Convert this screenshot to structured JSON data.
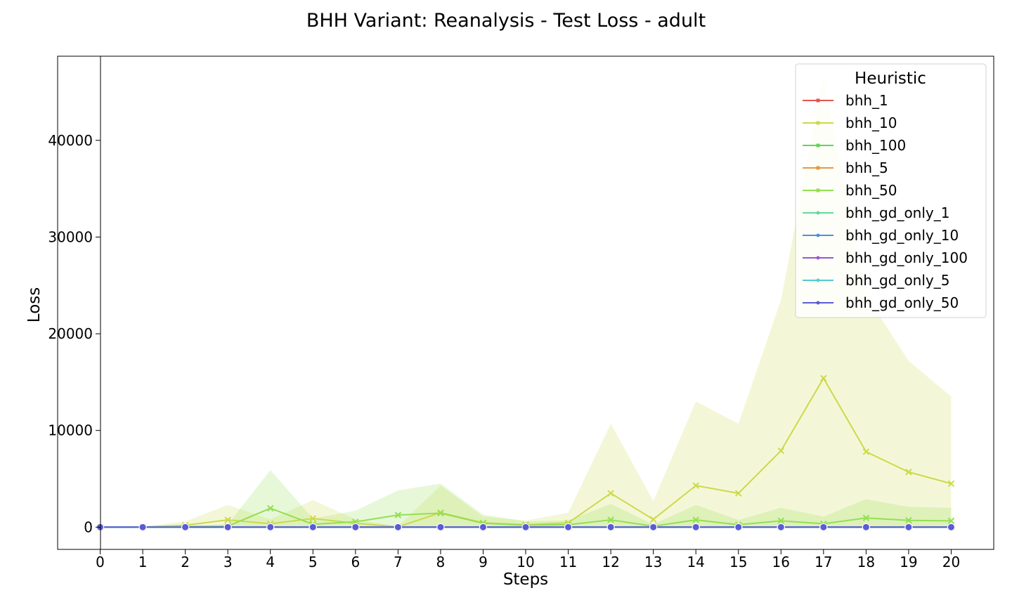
{
  "chart_data": {
    "type": "line",
    "title": "BHH Variant: Reanalysis - Test Loss - adult",
    "xlabel": "Steps",
    "ylabel": "Loss",
    "x": [
      0,
      1,
      2,
      3,
      4,
      5,
      6,
      7,
      8,
      9,
      10,
      11,
      12,
      13,
      14,
      15,
      16,
      17,
      18,
      19,
      20
    ],
    "xlim": [
      -1,
      21
    ],
    "ylim": [
      -2300,
      48700
    ],
    "yticks": [
      0,
      10000,
      20000,
      30000,
      40000
    ],
    "grid": false,
    "legend": {
      "title": "Heuristic",
      "placement": "top-right"
    },
    "series": [
      {
        "name": "bhh_1",
        "color": "#e0584f",
        "marker": "x",
        "values": [
          0,
          0,
          0,
          0,
          0,
          0,
          0,
          0,
          0,
          0,
          0,
          0,
          0,
          0,
          0,
          0,
          0,
          0,
          0,
          0,
          0
        ]
      },
      {
        "name": "bhh_10",
        "color": "#ccd94a",
        "marker": "x",
        "values": [
          0,
          20,
          200,
          750,
          350,
          900,
          400,
          30,
          1500,
          450,
          250,
          450,
          3500,
          800,
          4300,
          3500,
          7900,
          15400,
          7800,
          5700,
          4500
        ],
        "band_low": [
          0,
          0,
          0,
          0,
          0,
          0,
          0,
          0,
          0,
          0,
          0,
          0,
          0,
          0,
          0,
          0,
          0,
          0,
          0,
          0,
          0
        ],
        "band_high": [
          0,
          50,
          600,
          2300,
          800,
          2800,
          800,
          60,
          4300,
          1100,
          700,
          1500,
          10700,
          2700,
          13000,
          10700,
          23500,
          46500,
          24000,
          17200,
          13500
        ]
      },
      {
        "name": "bhh_100",
        "color": "#5ed65a",
        "marker": "x",
        "values": [
          0,
          0,
          0,
          0,
          0,
          0,
          0,
          0,
          0,
          0,
          0,
          0,
          0,
          0,
          0,
          0,
          0,
          0,
          0,
          0,
          0
        ]
      },
      {
        "name": "bhh_5",
        "color": "#e39a45",
        "marker": "x",
        "values": [
          0,
          0,
          0,
          0,
          0,
          0,
          0,
          0,
          0,
          0,
          0,
          0,
          0,
          0,
          0,
          0,
          0,
          0,
          0,
          0,
          0
        ]
      },
      {
        "name": "bhh_50",
        "color": "#93e052",
        "marker": "x",
        "values": [
          0,
          0,
          50,
          100,
          1950,
          300,
          550,
          1250,
          1450,
          400,
          200,
          250,
          750,
          100,
          750,
          250,
          650,
          350,
          950,
          700,
          650
        ],
        "band_low": [
          0,
          0,
          0,
          0,
          0,
          0,
          0,
          0,
          0,
          0,
          0,
          0,
          0,
          0,
          0,
          0,
          0,
          0,
          0,
          0,
          0
        ],
        "band_high": [
          0,
          0,
          150,
          300,
          5900,
          900,
          1700,
          3800,
          4500,
          1300,
          600,
          700,
          2400,
          300,
          2300,
          750,
          2000,
          1100,
          2900,
          2100,
          2000
        ]
      },
      {
        "name": "bhh_gd_only_1",
        "color": "#5edc9a",
        "marker": "o",
        "values": [
          0,
          0,
          0,
          0,
          0,
          0,
          0,
          0,
          0,
          0,
          0,
          0,
          0,
          0,
          0,
          0,
          0,
          0,
          0,
          0,
          0
        ]
      },
      {
        "name": "bhh_gd_only_10",
        "color": "#4f8ee0",
        "marker": "o",
        "values": [
          0,
          0,
          0,
          0,
          0,
          0,
          0,
          0,
          0,
          0,
          0,
          0,
          0,
          0,
          0,
          0,
          0,
          0,
          0,
          0,
          0
        ]
      },
      {
        "name": "bhh_gd_only_100",
        "color": "#9a55d9",
        "marker": "o",
        "values": [
          0,
          0,
          0,
          0,
          0,
          0,
          0,
          0,
          0,
          0,
          0,
          0,
          0,
          0,
          0,
          0,
          0,
          0,
          0,
          0,
          0
        ]
      },
      {
        "name": "bhh_gd_only_5",
        "color": "#52cbd6",
        "marker": "o",
        "values": [
          0,
          0,
          0,
          0,
          0,
          0,
          0,
          0,
          0,
          0,
          0,
          0,
          0,
          0,
          0,
          0,
          0,
          0,
          0,
          0,
          0
        ]
      },
      {
        "name": "bhh_gd_only_50",
        "color": "#5a5bd6",
        "marker": "o",
        "values": [
          0,
          0,
          0,
          0,
          0,
          0,
          0,
          0,
          0,
          0,
          0,
          0,
          0,
          0,
          0,
          0,
          0,
          0,
          0,
          0,
          0
        ]
      }
    ]
  }
}
